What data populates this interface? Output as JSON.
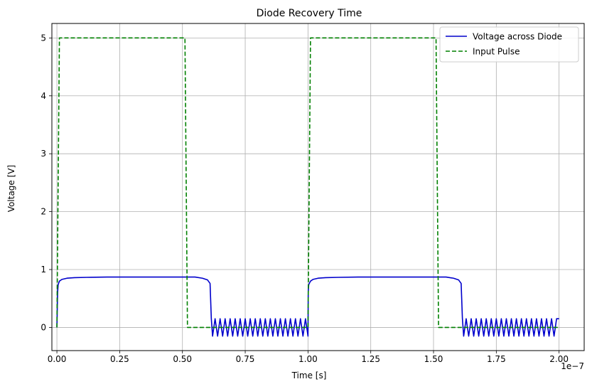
{
  "chart_data": {
    "type": "line",
    "title": "Diode Recovery Time",
    "xlabel": "Time [s]",
    "ylabel": "Voltage [V]",
    "x_offset_label": "1e−7",
    "xlim": [
      -2e-09,
      2.1e-07
    ],
    "ylim": [
      -0.4,
      5.25
    ],
    "x_ticks": [
      {
        "value": 0.0,
        "label": "0.00"
      },
      {
        "value": 2.5e-08,
        "label": "0.25"
      },
      {
        "value": 5e-08,
        "label": "0.50"
      },
      {
        "value": 7.5e-08,
        "label": "0.75"
      },
      {
        "value": 1e-07,
        "label": "1.00"
      },
      {
        "value": 1.25e-07,
        "label": "1.25"
      },
      {
        "value": 1.5e-07,
        "label": "1.50"
      },
      {
        "value": 1.75e-07,
        "label": "1.75"
      },
      {
        "value": 2e-07,
        "label": "2.00"
      }
    ],
    "y_ticks": [
      {
        "value": 0,
        "label": "0"
      },
      {
        "value": 1,
        "label": "1"
      },
      {
        "value": 2,
        "label": "2"
      },
      {
        "value": 3,
        "label": "3"
      },
      {
        "value": 4,
        "label": "4"
      },
      {
        "value": 5,
        "label": "5"
      }
    ],
    "grid": true,
    "legend_position": "top-right",
    "series": [
      {
        "name": "Voltage across Diode",
        "color": "#0000cc",
        "style": "solid",
        "points": [
          [
            0,
            0
          ],
          [
            1e-10,
            0.2
          ],
          [
            2e-10,
            0.45
          ],
          [
            3e-10,
            0.62
          ],
          [
            5e-10,
            0.74
          ],
          [
            1e-09,
            0.8
          ],
          [
            2e-09,
            0.83
          ],
          [
            4e-09,
            0.85
          ],
          [
            7e-09,
            0.86
          ],
          [
            1.2e-08,
            0.865
          ],
          [
            2e-08,
            0.87
          ],
          [
            4e-08,
            0.87
          ],
          [
            5e-08,
            0.87
          ],
          [
            5.5e-08,
            0.87
          ],
          [
            5.8e-08,
            0.85
          ],
          [
            6e-08,
            0.82
          ],
          [
            6.1e-08,
            0.76
          ],
          [
            6.15e-08,
            0.15
          ],
          [
            6.2e-08,
            -0.15
          ],
          [
            6.3e-08,
            0.15
          ],
          [
            6.4e-08,
            -0.15
          ],
          [
            6.5e-08,
            0.15
          ],
          [
            6.6e-08,
            -0.15
          ],
          [
            6.7e-08,
            0.15
          ],
          [
            6.8e-08,
            -0.15
          ],
          [
            6.9e-08,
            0.15
          ],
          [
            7e-08,
            -0.15
          ],
          [
            7.1e-08,
            0.15
          ],
          [
            7.2e-08,
            -0.15
          ],
          [
            7.3e-08,
            0.15
          ],
          [
            7.4e-08,
            -0.15
          ],
          [
            7.5e-08,
            0.15
          ],
          [
            7.6e-08,
            -0.15
          ],
          [
            7.7e-08,
            0.15
          ],
          [
            7.8e-08,
            -0.15
          ],
          [
            7.9e-08,
            0.15
          ],
          [
            8e-08,
            -0.15
          ],
          [
            8.1e-08,
            0.15
          ],
          [
            8.2e-08,
            -0.15
          ],
          [
            8.3e-08,
            0.15
          ],
          [
            8.4e-08,
            -0.15
          ],
          [
            8.5e-08,
            0.15
          ],
          [
            8.6e-08,
            -0.15
          ],
          [
            8.7e-08,
            0.15
          ],
          [
            8.8e-08,
            -0.15
          ],
          [
            8.9e-08,
            0.15
          ],
          [
            9e-08,
            -0.15
          ],
          [
            9.1e-08,
            0.15
          ],
          [
            9.2e-08,
            -0.15
          ],
          [
            9.3e-08,
            0.15
          ],
          [
            9.4e-08,
            -0.15
          ],
          [
            9.5e-08,
            0.15
          ],
          [
            9.6e-08,
            -0.15
          ],
          [
            9.7e-08,
            0.15
          ],
          [
            9.8e-08,
            -0.15
          ],
          [
            9.9e-08,
            0.15
          ],
          [
            1e-07,
            -0.15
          ],
          [
            1.0005e-07,
            0.2
          ],
          [
            1.001e-07,
            0.62
          ],
          [
            1.003e-07,
            0.74
          ],
          [
            1.01e-07,
            0.8
          ],
          [
            1.02e-07,
            0.83
          ],
          [
            1.04e-07,
            0.85
          ],
          [
            1.07e-07,
            0.86
          ],
          [
            1.12e-07,
            0.865
          ],
          [
            1.2e-07,
            0.87
          ],
          [
            1.4e-07,
            0.87
          ],
          [
            1.5e-07,
            0.87
          ],
          [
            1.55e-07,
            0.87
          ],
          [
            1.58e-07,
            0.85
          ],
          [
            1.6e-07,
            0.82
          ],
          [
            1.61e-07,
            0.76
          ],
          [
            1.615e-07,
            0.15
          ],
          [
            1.62e-07,
            -0.15
          ],
          [
            1.63e-07,
            0.15
          ],
          [
            1.64e-07,
            -0.15
          ],
          [
            1.65e-07,
            0.15
          ],
          [
            1.66e-07,
            -0.15
          ],
          [
            1.67e-07,
            0.15
          ],
          [
            1.68e-07,
            -0.15
          ],
          [
            1.69e-07,
            0.15
          ],
          [
            1.7e-07,
            -0.15
          ],
          [
            1.71e-07,
            0.15
          ],
          [
            1.72e-07,
            -0.15
          ],
          [
            1.73e-07,
            0.15
          ],
          [
            1.74e-07,
            -0.15
          ],
          [
            1.75e-07,
            0.15
          ],
          [
            1.76e-07,
            -0.15
          ],
          [
            1.77e-07,
            0.15
          ],
          [
            1.78e-07,
            -0.15
          ],
          [
            1.79e-07,
            0.15
          ],
          [
            1.8e-07,
            -0.15
          ],
          [
            1.81e-07,
            0.15
          ],
          [
            1.82e-07,
            -0.15
          ],
          [
            1.83e-07,
            0.15
          ],
          [
            1.84e-07,
            -0.15
          ],
          [
            1.85e-07,
            0.15
          ],
          [
            1.86e-07,
            -0.15
          ],
          [
            1.87e-07,
            0.15
          ],
          [
            1.88e-07,
            -0.15
          ],
          [
            1.89e-07,
            0.15
          ],
          [
            1.9e-07,
            -0.15
          ],
          [
            1.91e-07,
            0.15
          ],
          [
            1.92e-07,
            -0.15
          ],
          [
            1.93e-07,
            0.15
          ],
          [
            1.94e-07,
            -0.15
          ],
          [
            1.95e-07,
            0.15
          ],
          [
            1.96e-07,
            -0.15
          ],
          [
            1.97e-07,
            0.15
          ],
          [
            1.98e-07,
            -0.15
          ],
          [
            1.99e-07,
            0.15
          ],
          [
            2e-07,
            0.15
          ]
        ]
      },
      {
        "name": "Input Pulse",
        "color": "#008000",
        "style": "dashed",
        "points": [
          [
            0,
            0
          ],
          [
            1e-09,
            5
          ],
          [
            5e-08,
            5
          ],
          [
            5.1e-08,
            5
          ],
          [
            5.2e-08,
            0
          ],
          [
            1e-07,
            0
          ],
          [
            1.01e-07,
            5
          ],
          [
            1.51e-07,
            5
          ],
          [
            1.52e-07,
            0
          ],
          [
            2e-07,
            0
          ]
        ]
      }
    ]
  }
}
